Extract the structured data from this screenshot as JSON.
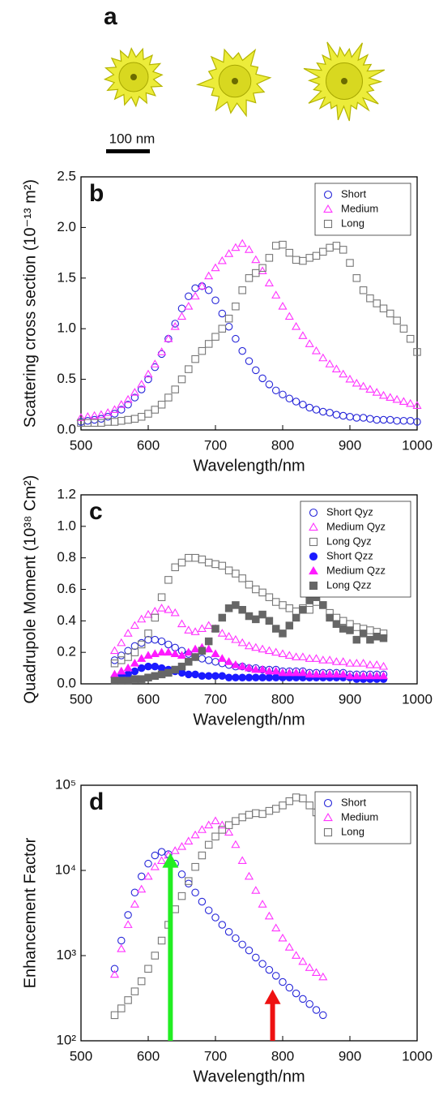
{
  "panel_a": {
    "label": "a",
    "scale_bar": "100 nm"
  },
  "chart_data": [
    {
      "type": "scatter",
      "label": "b",
      "xlabel": "Wavelength/nm",
      "ylabel": "Scattering cross section (10⁻¹³ m²)",
      "xlim": [
        500,
        1000
      ],
      "xticks": [
        500,
        600,
        700,
        800,
        900,
        1000
      ],
      "ylim": [
        0,
        2.5
      ],
      "yticks": [
        {
          "value": 0,
          "label": "0.0"
        },
        {
          "value": 0.5,
          "label": "0.5"
        },
        {
          "value": 1,
          "label": "1.0"
        },
        {
          "value": 1.5,
          "label": "1.5"
        },
        {
          "value": 2,
          "label": "2.0"
        },
        {
          "value": 2.5,
          "label": "2.5"
        }
      ],
      "legend": "upper right",
      "x": [
        500,
        510,
        520,
        530,
        540,
        550,
        560,
        570,
        580,
        590,
        600,
        610,
        620,
        630,
        640,
        650,
        660,
        670,
        680,
        690,
        700,
        710,
        720,
        730,
        740,
        750,
        760,
        770,
        780,
        790,
        800,
        810,
        820,
        830,
        840,
        850,
        860,
        870,
        880,
        890,
        900,
        910,
        920,
        930,
        940,
        950,
        960,
        970,
        980,
        990,
        1000
      ],
      "series": [
        {
          "name": "Short",
          "color": "#2626d9",
          "marker": "circle",
          "filled": false,
          "values": [
            0.08,
            0.09,
            0.1,
            0.11,
            0.13,
            0.16,
            0.2,
            0.25,
            0.32,
            0.4,
            0.5,
            0.62,
            0.75,
            0.9,
            1.05,
            1.2,
            1.32,
            1.4,
            1.42,
            1.38,
            1.28,
            1.15,
            1.02,
            0.9,
            0.78,
            0.68,
            0.59,
            0.51,
            0.45,
            0.39,
            0.35,
            0.31,
            0.28,
            0.25,
            0.22,
            0.2,
            0.18,
            0.17,
            0.15,
            0.14,
            0.13,
            0.12,
            0.12,
            0.11,
            0.1,
            0.1,
            0.1,
            0.09,
            0.09,
            0.09,
            0.08
          ]
        },
        {
          "name": "Medium",
          "color": "#ff33ff",
          "marker": "triangle",
          "filled": false,
          "values": [
            0.12,
            0.13,
            0.14,
            0.15,
            0.17,
            0.2,
            0.25,
            0.3,
            0.37,
            0.45,
            0.55,
            0.65,
            0.77,
            0.9,
            1.02,
            1.12,
            1.22,
            1.32,
            1.42,
            1.52,
            1.6,
            1.67,
            1.74,
            1.8,
            1.84,
            1.78,
            1.68,
            1.57,
            1.45,
            1.33,
            1.22,
            1.12,
            1.02,
            0.93,
            0.85,
            0.78,
            0.71,
            0.65,
            0.6,
            0.55,
            0.5,
            0.46,
            0.43,
            0.4,
            0.37,
            0.34,
            0.32,
            0.3,
            0.28,
            0.26,
            0.24
          ]
        },
        {
          "name": "Long",
          "color": "#777777",
          "marker": "square",
          "filled": false,
          "values": [
            0.07,
            0.07,
            0.07,
            0.07,
            0.08,
            0.08,
            0.09,
            0.1,
            0.11,
            0.13,
            0.16,
            0.2,
            0.25,
            0.32,
            0.4,
            0.5,
            0.6,
            0.7,
            0.78,
            0.85,
            0.92,
            1.0,
            1.1,
            1.22,
            1.38,
            1.5,
            1.55,
            1.6,
            1.7,
            1.82,
            1.83,
            1.75,
            1.68,
            1.67,
            1.7,
            1.72,
            1.76,
            1.8,
            1.82,
            1.78,
            1.65,
            1.5,
            1.38,
            1.3,
            1.25,
            1.2,
            1.15,
            1.08,
            1.0,
            0.9,
            0.77
          ]
        }
      ]
    },
    {
      "type": "scatter",
      "label": "c",
      "xlabel": "Wavelength/nm",
      "ylabel": "Quadrupole Moment (10³⁸ Cm²)",
      "xlim": [
        500,
        1000
      ],
      "xticks": [
        500,
        600,
        700,
        800,
        900,
        1000
      ],
      "ylim": [
        0,
        1.2
      ],
      "yticks": [
        {
          "value": 0,
          "label": "0.0"
        },
        0.2,
        0.4,
        0.6,
        0.8,
        {
          "value": 1,
          "label": "1.0"
        },
        1.2
      ],
      "legend": "upper right",
      "x": [
        550,
        560,
        570,
        580,
        590,
        600,
        610,
        620,
        630,
        640,
        650,
        660,
        670,
        680,
        690,
        700,
        710,
        720,
        730,
        740,
        750,
        760,
        770,
        780,
        790,
        800,
        810,
        820,
        830,
        840,
        850,
        860,
        870,
        880,
        890,
        900,
        910,
        920,
        930,
        940,
        950
      ],
      "series": [
        {
          "name": "Short Qyz",
          "color": "#2626d9",
          "marker": "circle",
          "filled": false,
          "values": [
            0.15,
            0.18,
            0.21,
            0.24,
            0.26,
            0.28,
            0.28,
            0.27,
            0.25,
            0.23,
            0.21,
            0.19,
            0.17,
            0.16,
            0.15,
            0.14,
            0.13,
            0.12,
            0.11,
            0.11,
            0.1,
            0.1,
            0.09,
            0.09,
            0.09,
            0.08,
            0.08,
            0.08,
            0.08,
            0.07,
            0.07,
            0.07,
            0.07,
            0.07,
            0.07,
            0.06,
            0.06,
            0.06,
            0.06,
            0.06,
            0.06
          ]
        },
        {
          "name": "Medium Qyz",
          "color": "#ff33ff",
          "marker": "triangle",
          "filled": false,
          "values": [
            0.21,
            0.26,
            0.32,
            0.37,
            0.41,
            0.44,
            0.46,
            0.48,
            0.47,
            0.45,
            0.38,
            0.34,
            0.33,
            0.35,
            0.37,
            0.35,
            0.32,
            0.3,
            0.28,
            0.26,
            0.24,
            0.23,
            0.22,
            0.21,
            0.2,
            0.19,
            0.18,
            0.17,
            0.17,
            0.16,
            0.16,
            0.15,
            0.15,
            0.14,
            0.14,
            0.13,
            0.13,
            0.13,
            0.12,
            0.12,
            0.11
          ]
        },
        {
          "name": "Long Qyz",
          "color": "#777777",
          "marker": "square",
          "filled": false,
          "values": [
            0.13,
            0.15,
            0.17,
            0.2,
            0.25,
            0.32,
            0.42,
            0.55,
            0.66,
            0.74,
            0.77,
            0.8,
            0.8,
            0.79,
            0.77,
            0.76,
            0.75,
            0.72,
            0.7,
            0.67,
            0.63,
            0.6,
            0.58,
            0.55,
            0.52,
            0.5,
            0.48,
            0.46,
            0.48,
            0.47,
            0.52,
            0.5,
            0.45,
            0.42,
            0.4,
            0.38,
            0.36,
            0.35,
            0.34,
            0.33,
            0.32
          ]
        },
        {
          "name": "Short Qzz",
          "color": "#1a1aff",
          "marker": "circle",
          "filled": true,
          "values": [
            0.04,
            0.05,
            0.06,
            0.08,
            0.1,
            0.11,
            0.11,
            0.1,
            0.09,
            0.08,
            0.07,
            0.06,
            0.06,
            0.05,
            0.05,
            0.05,
            0.05,
            0.04,
            0.04,
            0.04,
            0.04,
            0.04,
            0.04,
            0.04,
            0.04,
            0.04,
            0.04,
            0.04,
            0.04,
            0.04,
            0.04,
            0.04,
            0.04,
            0.04,
            0.04,
            0.04,
            0.03,
            0.03,
            0.03,
            0.03,
            0.03
          ]
        },
        {
          "name": "Medium Qzz",
          "color": "#ff1aff",
          "marker": "triangle",
          "filled": true,
          "values": [
            0.06,
            0.08,
            0.1,
            0.13,
            0.16,
            0.18,
            0.19,
            0.2,
            0.2,
            0.19,
            0.18,
            0.2,
            0.22,
            0.23,
            0.22,
            0.19,
            0.16,
            0.14,
            0.12,
            0.11,
            0.1,
            0.09,
            0.09,
            0.08,
            0.08,
            0.07,
            0.07,
            0.07,
            0.07,
            0.06,
            0.06,
            0.06,
            0.06,
            0.06,
            0.06,
            0.05,
            0.05,
            0.05,
            0.05,
            0.05,
            0.05
          ]
        },
        {
          "name": "Long Qzz",
          "color": "#666666",
          "marker": "square",
          "filled": true,
          "values": [
            0.02,
            0.02,
            0.02,
            0.03,
            0.03,
            0.04,
            0.05,
            0.06,
            0.07,
            0.09,
            0.11,
            0.14,
            0.17,
            0.21,
            0.27,
            0.35,
            0.42,
            0.48,
            0.5,
            0.47,
            0.43,
            0.41,
            0.44,
            0.4,
            0.35,
            0.32,
            0.37,
            0.42,
            0.47,
            0.53,
            0.55,
            0.5,
            0.42,
            0.38,
            0.35,
            0.34,
            0.28,
            0.32,
            0.28,
            0.3,
            0.29
          ]
        }
      ]
    },
    {
      "type": "scatter",
      "label": "d",
      "xlabel": "Wavelength/nm",
      "ylabel": "Enhancement Factor",
      "xlim": [
        500,
        1000
      ],
      "xticks": [
        500,
        600,
        700,
        800,
        900,
        1000
      ],
      "yscale": "log",
      "ylim": [
        100,
        100000
      ],
      "yticks": [
        {
          "value": 100,
          "label": "10²"
        },
        {
          "value": 1000,
          "label": "10³"
        },
        {
          "value": 10000,
          "label": "10⁴"
        },
        {
          "value": 100000,
          "label": "10⁵"
        }
      ],
      "legend": "upper right",
      "arrows": [
        {
          "x": 633,
          "y": 16000,
          "color": "#22ee22"
        },
        {
          "x": 785,
          "y": 400,
          "color": "#ee1111"
        }
      ],
      "x": [
        550,
        560,
        570,
        580,
        590,
        600,
        610,
        620,
        630,
        640,
        650,
        660,
        670,
        680,
        690,
        700,
        710,
        720,
        730,
        740,
        750,
        760,
        770,
        780,
        790,
        800,
        810,
        820,
        830,
        840,
        850,
        860
      ],
      "series": [
        {
          "name": "Short",
          "color": "#2626d9",
          "marker": "circle",
          "filled": false,
          "values": [
            700,
            1500,
            3000,
            5500,
            8500,
            12000,
            15000,
            16500,
            15500,
            12000,
            9000,
            7000,
            5500,
            4300,
            3400,
            2800,
            2300,
            1900,
            1600,
            1350,
            1150,
            950,
            800,
            680,
            580,
            490,
            420,
            360,
            310,
            270,
            230,
            200
          ]
        },
        {
          "name": "Medium",
          "color": "#ff33ff",
          "marker": "triangle",
          "filled": false,
          "values": [
            600,
            1200,
            2300,
            4000,
            6000,
            8500,
            11000,
            13000,
            15000,
            17000,
            19000,
            22000,
            26000,
            30000,
            34000,
            38000,
            34000,
            28000,
            20000,
            13000,
            8500,
            5800,
            4000,
            2900,
            2100,
            1600,
            1250,
            1000,
            850,
            720,
            630,
            560
          ]
        },
        {
          "name": "Long",
          "color": "#777777",
          "marker": "square",
          "filled": false,
          "values": [
            200,
            240,
            300,
            380,
            500,
            700,
            1000,
            1500,
            2300,
            3500,
            5000,
            7500,
            11000,
            15000,
            20000,
            25000,
            30000,
            34000,
            38000,
            42000,
            45000,
            47000,
            46000,
            50000,
            53000,
            58000,
            65000,
            72000,
            70000,
            58000,
            48000,
            44000
          ]
        }
      ]
    }
  ]
}
